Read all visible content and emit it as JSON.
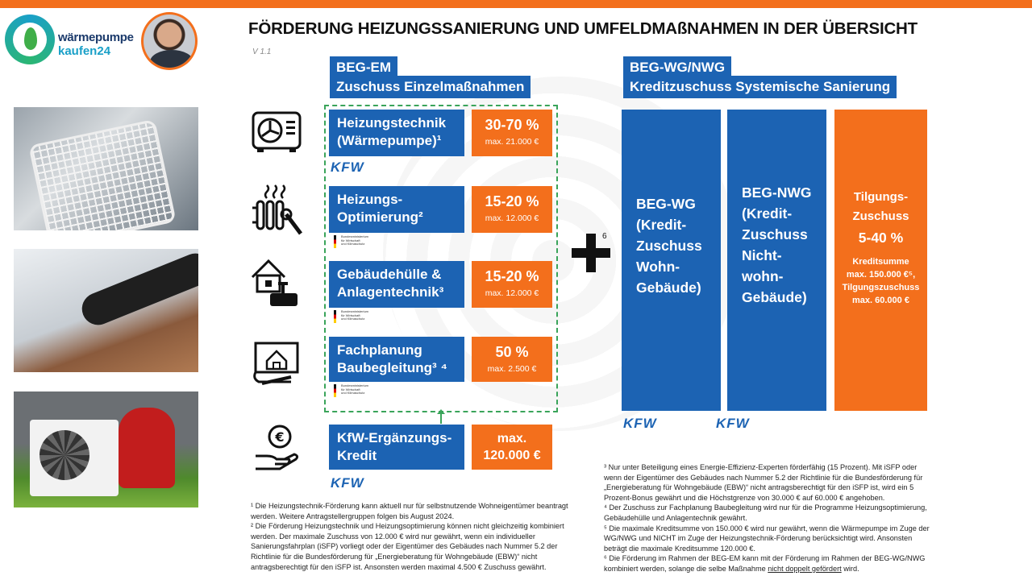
{
  "brand": {
    "line1": "wärmepumpe",
    "line2": "kaufen24"
  },
  "title": "FÖRDERUNG HEIZUNGSSANIERUNG UND UMFELDMAßNAHMEN IN DER ÜBERSICHT",
  "version": "V 1.1",
  "left_section": {
    "header1": "BEG-EM",
    "header2": "Zuschuss Einzelmaßnahmen",
    "rows": [
      {
        "label1": "Heizungstechnik",
        "label2": "(Wärmepumpe)¹",
        "percent": "30-70 %",
        "max": "max. 21.000 €",
        "logo": "KFW"
      },
      {
        "label1": "Heizungs-",
        "label2": "Optimierung²",
        "percent": "15-20 %",
        "max": "max. 12.000 €",
        "logo": "Bundesministerium für Wirtschaft und Klimaschutz"
      },
      {
        "label1": "Gebäudehülle &",
        "label2": "Anlagentechnik³",
        "percent": "15-20 %",
        "max": "max. 12.000 €",
        "logo": "Bundesministerium für Wirtschaft und Klimaschutz"
      },
      {
        "label1": "Fachplanung",
        "label2": "Baubegleitung³ ⁴",
        "percent": "50 %",
        "max": "max. 2.500 €",
        "logo": "Bundesministerium für Wirtschaft und Klimaschutz"
      }
    ],
    "extra": {
      "label1": "KfW-Ergänzungs-",
      "label2": "Kredit",
      "big1": "max.",
      "big2": "120.000 €",
      "logo": "KFW"
    }
  },
  "plus_sup": "6",
  "right_section": {
    "header1": "BEG-WG/NWG",
    "header2": "Kreditzuschuss Systemische Sanierung",
    "col1": "BEG-WG\n(Kredit-\nZuschuss\nWohn-\nGebäude)",
    "col2": "BEG-NWG\n(Kredit-\nZuschuss\nNicht-\nwohn-\nGebäude)",
    "col3_title": "Tilgungs-\nZuschuss",
    "col3_pct": "5-40 %",
    "col3_detail": "Kreditsumme\nmax. 150.000 €⁵,\nTilgungszuschuss\nmax. 60.000 €",
    "logo1": "KFW",
    "logo2": "KFW"
  },
  "footnotes_left": [
    "¹ Die Heizungstechnik-Förderung kann aktuell nur für selbstnutzende Wohneigentümer beantragt werden. Weitere Antragstellergruppen folgen bis August 2024.",
    "² Die Förderung Heizungstechnik und Heizungsoptimierung können nicht gleichzeitig kombiniert werden. Der maximale Zuschuss von 12.000 € wird nur gewährt, wenn ein individueller Sanierungsfahrplan (iSFP) vorliegt oder der Eigentümer des Gebäudes nach Nummer 5.2 der Richtlinie für die Bundesförderung für „Energieberatung für Wohngebäude (EBW)“ nicht antragsberechtigt für den iSFP ist. Ansonsten werden maximal 4.500 € Zuschuss gewährt."
  ],
  "footnotes_right": [
    "³ Nur unter Beteiligung eines Energie-Effizienz-Experten förderfähig (15 Prozent). Mit iSFP oder wenn der Eigentümer des Gebäudes nach Nummer 5.2 der Richtlinie für die Bundesförderung für „Energieberatung für Wohngebäude (EBW)“ nicht antragsberechtigt für den iSFP ist, wird ein 5 Prozent-Bonus gewährt und die Höchstgrenze von 30.000 € auf 60.000 € angehoben.",
    "⁴ Der Zuschuss zur Fachplanung Baubegleitung wird nur für die Programme Heizungsoptimierung, Gebäudehülle und Anlagentechnik gewährt.",
    "⁵ Die maximale Kreditsumme von 150.000 € wird nur gewährt, wenn die Wärmepumpe im Zuge der WG/NWG und NICHT im Zuge der Heizungstechnik-Förderung berücksichtigt wird. Ansonsten beträgt die maximale Kreditsumme 120.000 €.",
    "⁶ Die Förderung im Rahmen der BEG-EM kann mit der Förderung im Rahmen der BEG-WG/NWG kombiniert werden, solange die selbe Maßnahme"
  ],
  "footnote6_underlined": "nicht doppelt gefördert",
  "footnote6_end": " wird."
}
